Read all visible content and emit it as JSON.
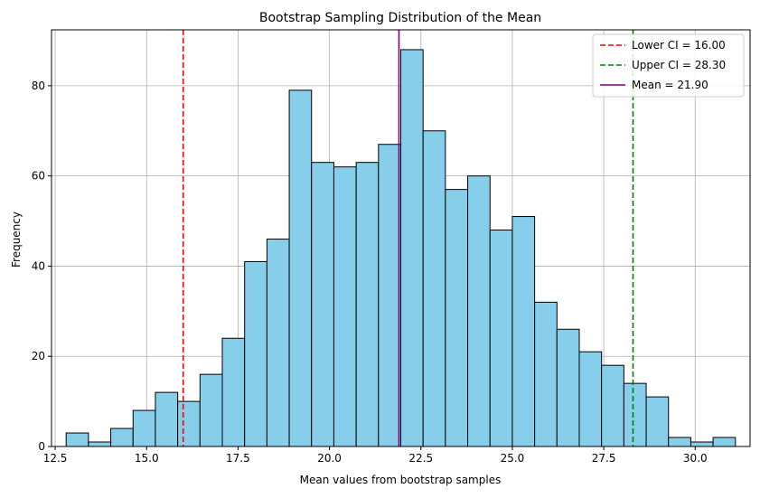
{
  "chart_data": {
    "type": "bar",
    "title": "Bootstrap Sampling Distribution of the Mean",
    "xlabel": "Mean values from bootstrap samples",
    "ylabel": "Frequency",
    "xlim": [
      12.4,
      31.5
    ],
    "ylim": [
      0,
      92.4
    ],
    "xticks": [
      12.5,
      15.0,
      17.5,
      20.0,
      22.5,
      25.0,
      27.5,
      30.0
    ],
    "xtick_labels": [
      "12.5",
      "15.0",
      "17.5",
      "20.0",
      "22.5",
      "25.0",
      "27.5",
      "30.0"
    ],
    "yticks": [
      0,
      20,
      40,
      60,
      80
    ],
    "ytick_labels": [
      "0",
      "20",
      "40",
      "60",
      "80"
    ],
    "grid": true,
    "bin_start": 12.8,
    "bin_width": 0.61,
    "values": [
      3,
      1,
      4,
      8,
      12,
      10,
      16,
      24,
      41,
      46,
      79,
      63,
      62,
      63,
      67,
      88,
      70,
      57,
      60,
      48,
      51,
      32,
      26,
      21,
      18,
      14,
      11,
      2,
      1,
      2
    ],
    "bar_color": "#87ceeb",
    "bar_edge_color": "#000000",
    "vlines": [
      {
        "x": 16.0,
        "color": "#ff0000",
        "style": "dashed",
        "label": "Lower CI = 16.00"
      },
      {
        "x": 28.3,
        "color": "#008000",
        "style": "dashed",
        "label": "Upper CI = 28.30"
      },
      {
        "x": 21.9,
        "color": "#800080",
        "style": "solid",
        "label": "Mean = 21.90"
      }
    ],
    "legend_position": "top-right"
  }
}
